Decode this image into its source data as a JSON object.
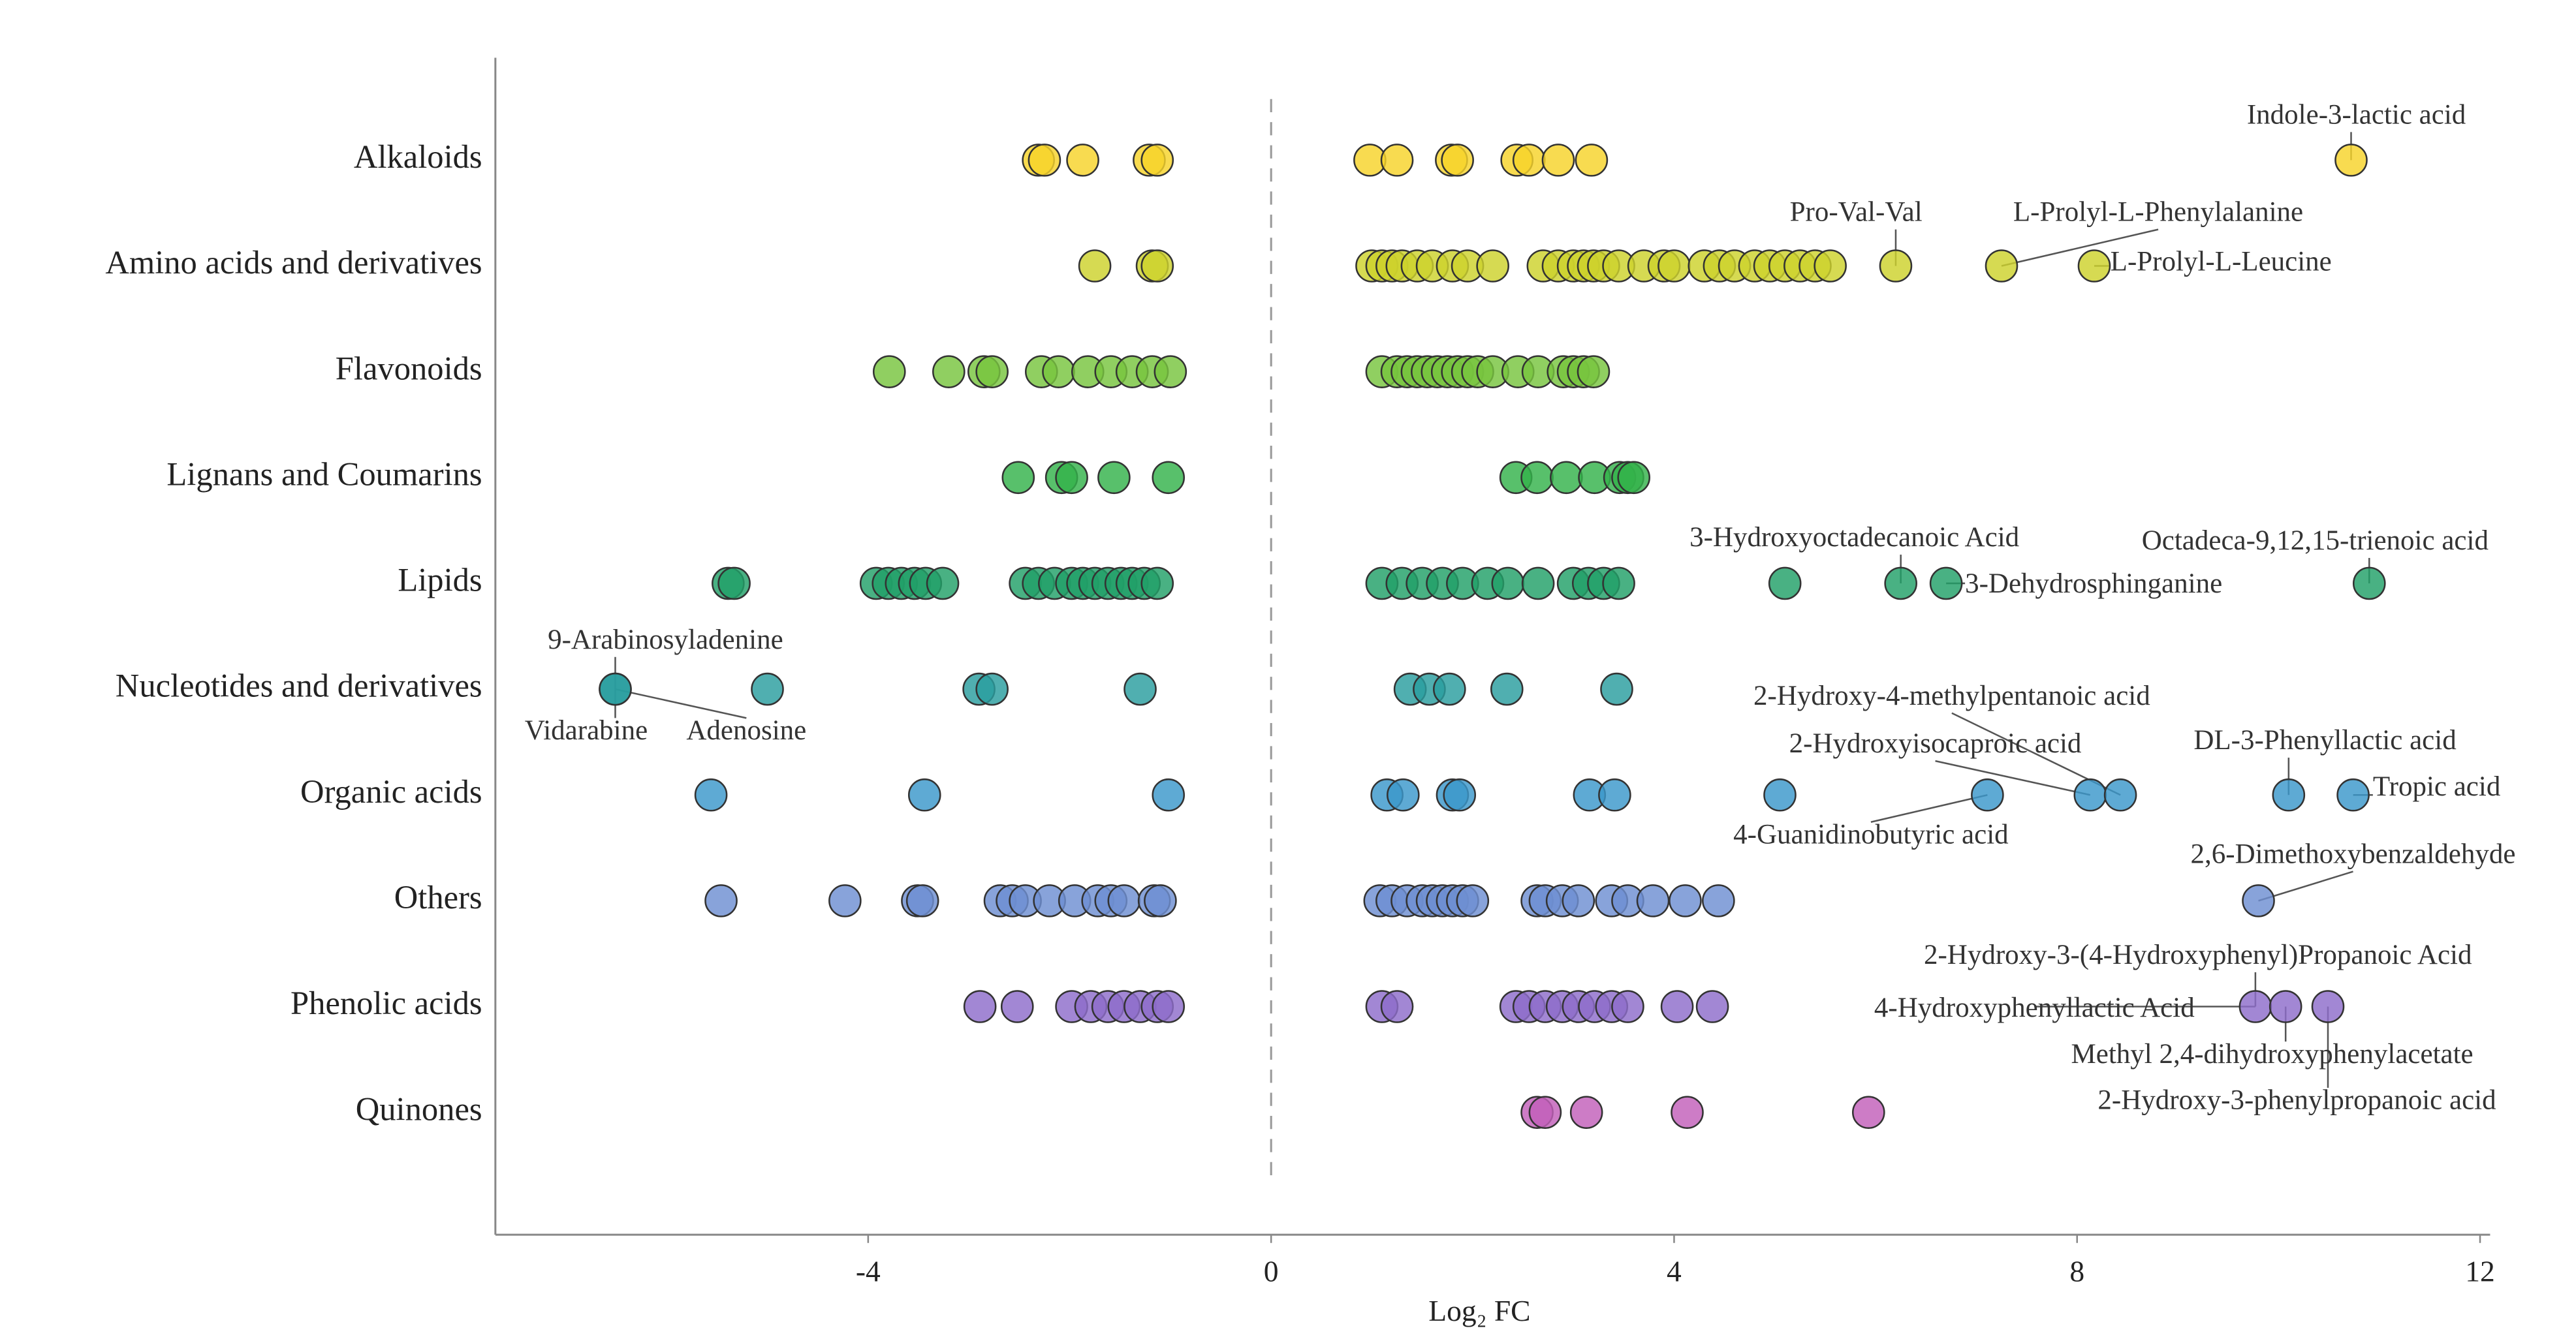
{
  "chart_data": {
    "type": "scatter",
    "xlabel": "Log₂ FC",
    "xlim": [
      -7.7,
      12.1
    ],
    "xticks": [
      -4,
      0,
      4,
      8,
      12
    ],
    "vline": 0,
    "series": [
      {
        "name": "Alkaloids",
        "color": "#f6d32a",
        "values": [
          -2.31,
          -2.25,
          -1.87,
          -1.21,
          -1.13,
          0.98,
          1.25,
          1.79,
          1.85,
          2.44,
          2.56,
          2.85,
          3.18,
          10.72
        ],
        "annotations": [
          {
            "text": "Indole-3-lactic acid",
            "x": 10.72
          }
        ]
      },
      {
        "name": "Amino acids and derivatives",
        "color": "#cdd22c",
        "values": [
          -1.75,
          -1.18,
          -1.13,
          1.0,
          1.1,
          1.2,
          1.3,
          1.45,
          1.6,
          1.8,
          1.95,
          2.2,
          2.7,
          2.85,
          3.0,
          3.1,
          3.2,
          3.3,
          3.45,
          3.7,
          3.9,
          4.0,
          4.3,
          4.45,
          4.6,
          4.8,
          4.95,
          5.1,
          5.25,
          5.4,
          5.55,
          6.2,
          7.25,
          8.17
        ],
        "annotations": [
          {
            "text": "Pro-Val-Val",
            "x": 6.2
          },
          {
            "text": "L-Prolyl-L-Phenylalanine",
            "x": 7.25
          },
          {
            "text": "L-Prolyl-L-Leucine",
            "x": 8.17
          }
        ]
      },
      {
        "name": "Flavonoids",
        "color": "#78c43e",
        "values": [
          -3.79,
          -3.2,
          -2.85,
          -2.77,
          -2.28,
          -2.11,
          -1.82,
          -1.59,
          -1.38,
          -1.18,
          -1.0,
          1.1,
          1.25,
          1.35,
          1.45,
          1.55,
          1.65,
          1.75,
          1.85,
          1.95,
          2.05,
          2.2,
          2.45,
          2.65,
          2.9,
          3.0,
          3.1,
          3.2
        ],
        "annotations": []
      },
      {
        "name": "Lignans and Coumarins",
        "color": "#33b24a",
        "values": [
          -2.51,
          -2.08,
          -1.98,
          -1.56,
          -1.02,
          2.43,
          2.64,
          2.93,
          3.21,
          3.46,
          3.54,
          3.6
        ],
        "annotations": []
      },
      {
        "name": "Lipids",
        "color": "#21a068",
        "values": [
          -5.39,
          -5.33,
          -3.92,
          -3.8,
          -3.67,
          -3.54,
          -3.43,
          -3.26,
          -2.44,
          -2.31,
          -2.15,
          -1.98,
          -1.87,
          -1.75,
          -1.62,
          -1.49,
          -1.38,
          -1.26,
          -1.13,
          1.1,
          1.3,
          1.5,
          1.7,
          1.9,
          2.15,
          2.35,
          2.65,
          3.0,
          3.15,
          3.3,
          3.45,
          5.1,
          6.25,
          6.7,
          10.9
        ],
        "annotations": [
          {
            "text": "3-Hydroxyoctadecanoic Acid",
            "x": 6.25
          },
          {
            "text": "Octadeca-9,12,15-trienoic acid",
            "x": 10.9
          },
          {
            "text": "3-Dehydrosphinganine",
            "x": 6.7
          }
        ]
      },
      {
        "name": "Nucleotides and derivatives",
        "color": "#2a9d9f",
        "values": [
          -6.51,
          -6.51,
          -5.0,
          -2.9,
          -2.77,
          -1.3,
          1.38,
          1.57,
          1.77,
          2.34,
          3.43
        ],
        "annotations": [
          {
            "text": "9-Arabinosyladenine",
            "x": -6.51
          },
          {
            "text": "Vidarabine",
            "x": -6.51
          },
          {
            "text": "Adenosine",
            "x": -6.51
          }
        ]
      },
      {
        "name": "Organic acids",
        "color": "#3b97cb",
        "values": [
          -5.56,
          -3.44,
          -1.02,
          1.15,
          1.31,
          1.8,
          1.87,
          3.16,
          3.41,
          5.05,
          7.11,
          8.13,
          8.43,
          10.1,
          10.74
        ],
        "annotations": [
          {
            "text": "2-Hydroxy-4-methylpentanoic acid",
            "x": 8.43
          },
          {
            "text": "2-Hydroxyisocaproic acid",
            "x": 8.13
          },
          {
            "text": "DL-3-Phenyllactic acid",
            "x": 10.1
          },
          {
            "text": "Tropic acid",
            "x": 10.74
          },
          {
            "text": "4-Guanidinobutyric acid",
            "x": 7.11
          }
        ]
      },
      {
        "name": "Others",
        "color": "#6e8fd2",
        "values": [
          -5.46,
          -4.23,
          -3.51,
          -3.46,
          -2.69,
          -2.57,
          -2.44,
          -2.2,
          -1.95,
          -1.72,
          -1.59,
          -1.46,
          -1.16,
          -1.1,
          1.08,
          1.2,
          1.35,
          1.5,
          1.6,
          1.7,
          1.8,
          1.9,
          2.0,
          2.64,
          2.72,
          2.89,
          3.05,
          3.38,
          3.54,
          3.79,
          4.11,
          4.44,
          9.8
        ],
        "annotations": [
          {
            "text": "2,6-Dimethoxybenzaldehyde",
            "x": 9.8
          }
        ]
      },
      {
        "name": "Phenolic acids",
        "color": "#8d6cca",
        "values": [
          -2.89,
          -2.52,
          -1.98,
          -1.79,
          -1.62,
          -1.46,
          -1.3,
          -1.13,
          -1.02,
          1.1,
          1.25,
          2.43,
          2.56,
          2.72,
          2.89,
          3.05,
          3.21,
          3.38,
          3.54,
          4.03,
          4.38,
          9.77,
          10.07,
          10.49
        ],
        "annotations": [
          {
            "text": "2-Hydroxy-3-(4-Hydroxyphenyl)Propanoic Acid",
            "x": 9.77
          },
          {
            "text": "4-Hydroxyphenyllactic Acid",
            "x": 9.77
          },
          {
            "text": "Methyl 2,4-dihydroxyphenylacetate",
            "x": 10.07
          },
          {
            "text": "2-Hydroxy-3-phenylpropanoic acid",
            "x": 10.49
          }
        ]
      },
      {
        "name": "Quinones",
        "color": "#c25fba",
        "values": [
          2.64,
          2.72,
          3.13,
          4.13,
          5.93
        ],
        "annotations": []
      }
    ]
  }
}
